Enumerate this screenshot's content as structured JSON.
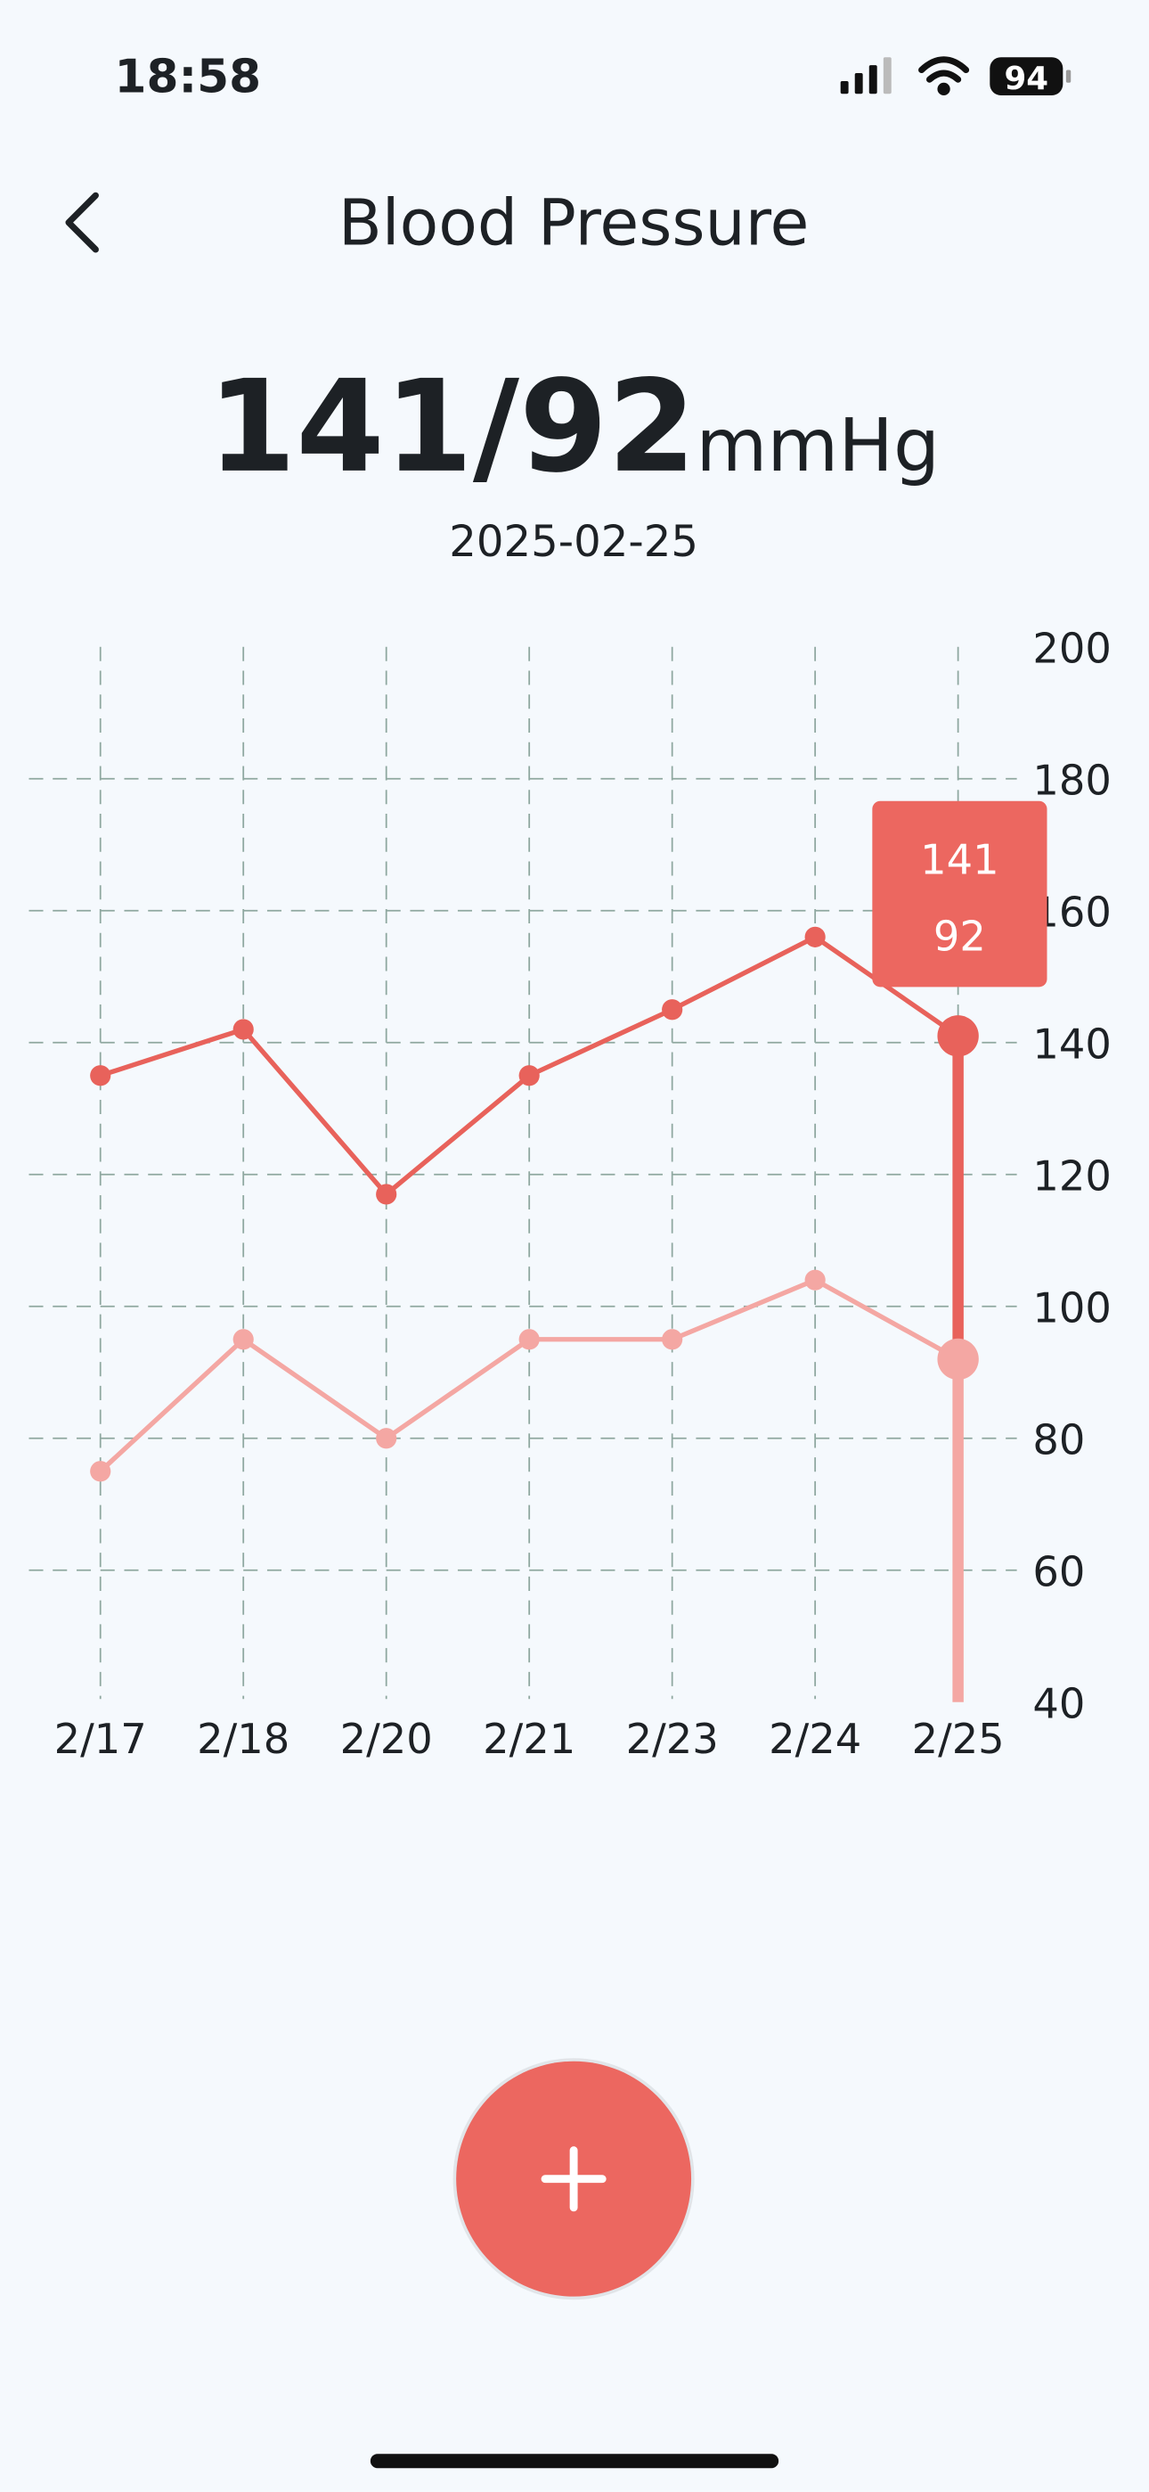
{
  "status_bar": {
    "time": "18:58",
    "battery": "94"
  },
  "header": {
    "title": "Blood Pressure"
  },
  "reading": {
    "value": "141/92",
    "unit": "mmHg",
    "date": "2025-02-25"
  },
  "chart_data": {
    "type": "line",
    "categories": [
      "2/17",
      "2/18",
      "2/20",
      "2/21",
      "2/23",
      "2/24",
      "2/25"
    ],
    "series": [
      {
        "color": "#e8625b",
        "values": [
          135,
          142,
          117,
          135,
          145,
          156,
          141
        ]
      },
      {
        "color": "#f4a7a3",
        "values": [
          75,
          95,
          80,
          95,
          95,
          104,
          92
        ]
      }
    ],
    "ylim": [
      40,
      200
    ],
    "yticks": [
      40,
      60,
      80,
      100,
      120,
      140,
      160,
      180,
      200
    ],
    "grid": true
  }
}
